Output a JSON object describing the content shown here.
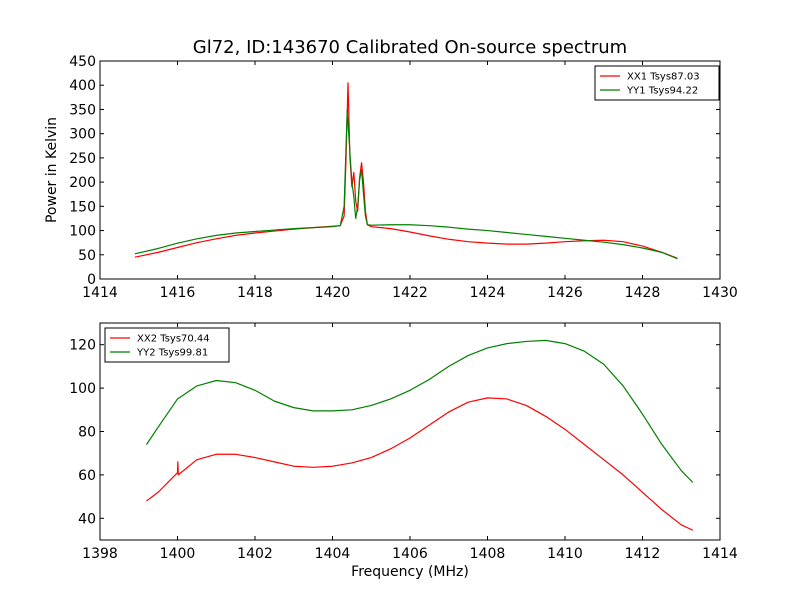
{
  "title": "Gl72, ID:143670 Calibrated On-source spectrum",
  "chart_data": [
    {
      "type": "line",
      "ylabel": "Power in Kelvin",
      "xlabel": "",
      "xlim": [
        1414,
        1430
      ],
      "ylim": [
        0,
        450
      ],
      "xticks": [
        1414,
        1416,
        1418,
        1420,
        1422,
        1424,
        1426,
        1428,
        1430
      ],
      "yticks": [
        0,
        50,
        100,
        150,
        200,
        250,
        300,
        350,
        400,
        450
      ],
      "legend_position": "top-right",
      "series": [
        {
          "name": "XX1 Tsys87.03",
          "color": "#ff0000",
          "points": [
            [
              1414.9,
              45
            ],
            [
              1415.5,
              55
            ],
            [
              1416,
              65
            ],
            [
              1416.5,
              75
            ],
            [
              1417,
              83
            ],
            [
              1417.5,
              90
            ],
            [
              1418,
              95
            ],
            [
              1418.5,
              99
            ],
            [
              1419,
              103
            ],
            [
              1419.5,
              106
            ],
            [
              1420,
              109
            ],
            [
              1420.2,
              110
            ],
            [
              1420.3,
              130
            ],
            [
              1420.35,
              250
            ],
            [
              1420.4,
              405
            ],
            [
              1420.45,
              250
            ],
            [
              1420.5,
              190
            ],
            [
              1420.55,
              220
            ],
            [
              1420.6,
              160
            ],
            [
              1420.65,
              140
            ],
            [
              1420.7,
              210
            ],
            [
              1420.75,
              240
            ],
            [
              1420.8,
              200
            ],
            [
              1420.85,
              140
            ],
            [
              1420.9,
              112
            ],
            [
              1421,
              108
            ],
            [
              1421.5,
              104
            ],
            [
              1422,
              97
            ],
            [
              1422.5,
              89
            ],
            [
              1423,
              82
            ],
            [
              1423.5,
              77
            ],
            [
              1424,
              74
            ],
            [
              1424.5,
              72
            ],
            [
              1425,
              72
            ],
            [
              1425.5,
              74
            ],
            [
              1426,
              77
            ],
            [
              1426.5,
              79
            ],
            [
              1427,
              80
            ],
            [
              1427.5,
              77
            ],
            [
              1428,
              68
            ],
            [
              1428.5,
              55
            ],
            [
              1428.9,
              43
            ]
          ]
        },
        {
          "name": "YY1 Tsys94.22",
          "color": "#008000",
          "points": [
            [
              1414.9,
              52
            ],
            [
              1415.5,
              63
            ],
            [
              1416,
              74
            ],
            [
              1416.5,
              83
            ],
            [
              1417,
              90
            ],
            [
              1417.5,
              95
            ],
            [
              1418,
              98
            ],
            [
              1418.5,
              101
            ],
            [
              1419,
              104
            ],
            [
              1419.5,
              106
            ],
            [
              1420,
              108
            ],
            [
              1420.2,
              110
            ],
            [
              1420.3,
              150
            ],
            [
              1420.38,
              350
            ],
            [
              1420.45,
              260
            ],
            [
              1420.5,
              200
            ],
            [
              1420.55,
              170
            ],
            [
              1420.6,
              125
            ],
            [
              1420.65,
              150
            ],
            [
              1420.7,
              205
            ],
            [
              1420.75,
              225
            ],
            [
              1420.8,
              175
            ],
            [
              1420.85,
              130
            ],
            [
              1420.9,
              112
            ],
            [
              1421,
              111
            ],
            [
              1421.5,
              112
            ],
            [
              1422,
              112
            ],
            [
              1422.5,
              110
            ],
            [
              1423,
              107
            ],
            [
              1423.5,
              103
            ],
            [
              1424,
              100
            ],
            [
              1424.5,
              96
            ],
            [
              1425,
              92
            ],
            [
              1425.5,
              88
            ],
            [
              1426,
              84
            ],
            [
              1426.5,
              80
            ],
            [
              1427,
              76
            ],
            [
              1427.5,
              71
            ],
            [
              1428,
              64
            ],
            [
              1428.5,
              55
            ],
            [
              1428.9,
              42
            ]
          ]
        }
      ]
    },
    {
      "type": "line",
      "xlabel": "Frequency (MHz)",
      "ylabel": "",
      "xlim": [
        1398,
        1414
      ],
      "ylim": [
        30,
        130
      ],
      "xticks": [
        1398,
        1400,
        1402,
        1404,
        1406,
        1408,
        1410,
        1412,
        1414
      ],
      "yticks": [
        40,
        60,
        80,
        100,
        120
      ],
      "legend_position": "top-left",
      "series": [
        {
          "name": "XX2 Tsys70.44",
          "color": "#ff0000",
          "points": [
            [
              1399.2,
              48
            ],
            [
              1399.5,
              52
            ],
            [
              1400,
              61
            ],
            [
              1400.01,
              66
            ],
            [
              1400.02,
              60
            ],
            [
              1400.5,
              67
            ],
            [
              1401,
              69.5
            ],
            [
              1401.5,
              69.5
            ],
            [
              1402,
              68
            ],
            [
              1402.5,
              66
            ],
            [
              1403,
              64
            ],
            [
              1403.5,
              63.5
            ],
            [
              1404,
              64
            ],
            [
              1404.5,
              65.5
            ],
            [
              1405,
              68
            ],
            [
              1405.5,
              72
            ],
            [
              1406,
              77
            ],
            [
              1406.5,
              83
            ],
            [
              1407,
              89
            ],
            [
              1407.5,
              93.5
            ],
            [
              1408,
              95.5
            ],
            [
              1408.5,
              95
            ],
            [
              1409,
              92
            ],
            [
              1409.5,
              87
            ],
            [
              1410,
              81
            ],
            [
              1410.5,
              74
            ],
            [
              1411,
              67
            ],
            [
              1411.5,
              60
            ],
            [
              1412,
              52
            ],
            [
              1412.5,
              44
            ],
            [
              1413,
              37
            ],
            [
              1413.3,
              34.5
            ]
          ]
        },
        {
          "name": "YY2 Tsys99.81",
          "color": "#008000",
          "points": [
            [
              1399.2,
              74
            ],
            [
              1399.5,
              82
            ],
            [
              1400,
              95
            ],
            [
              1400.5,
              101
            ],
            [
              1401,
              103.5
            ],
            [
              1401.5,
              102.5
            ],
            [
              1402,
              99
            ],
            [
              1402.5,
              94
            ],
            [
              1403,
              91
            ],
            [
              1403.5,
              89.5
            ],
            [
              1404,
              89.5
            ],
            [
              1404.5,
              90
            ],
            [
              1405,
              92
            ],
            [
              1405.5,
              95
            ],
            [
              1406,
              99
            ],
            [
              1406.5,
              104
            ],
            [
              1407,
              110
            ],
            [
              1407.5,
              115
            ],
            [
              1408,
              118.5
            ],
            [
              1408.5,
              120.5
            ],
            [
              1409,
              121.5
            ],
            [
              1409.5,
              122
            ],
            [
              1410,
              120.5
            ],
            [
              1410.5,
              117
            ],
            [
              1411,
              111
            ],
            [
              1411.5,
              101
            ],
            [
              1412,
              88
            ],
            [
              1412.5,
              74
            ],
            [
              1413,
              62
            ],
            [
              1413.3,
              56.5
            ]
          ]
        }
      ]
    }
  ]
}
